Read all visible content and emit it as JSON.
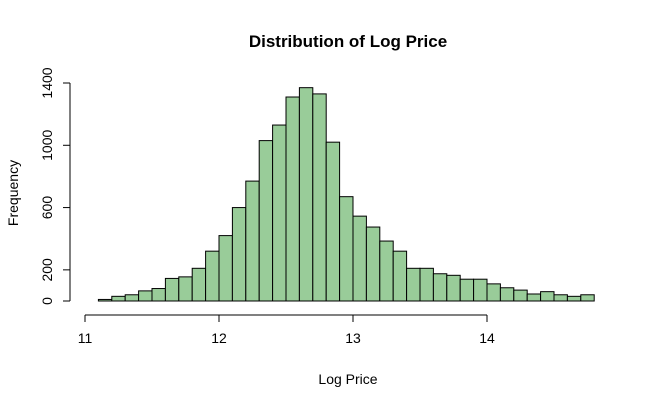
{
  "chart_data": {
    "type": "bar",
    "title": "Distribution of Log Price",
    "xlabel": "Log Price",
    "ylabel": "Frequency",
    "bin_width": 0.1,
    "bins_start": [
      11.1,
      11.2,
      11.3,
      11.4,
      11.5,
      11.6,
      11.7,
      11.8,
      11.9,
      12.0,
      12.1,
      12.2,
      12.3,
      12.4,
      12.5,
      12.6,
      12.7,
      12.8,
      12.9,
      13.0,
      13.1,
      13.2,
      13.3,
      13.4,
      13.5,
      13.6,
      13.7,
      13.8,
      13.9,
      14.0,
      14.1,
      14.2,
      14.3,
      14.4,
      14.5,
      14.6,
      14.7
    ],
    "values": [
      10,
      30,
      40,
      65,
      80,
      145,
      155,
      210,
      320,
      420,
      600,
      770,
      1030,
      1130,
      1310,
      1370,
      1330,
      1020,
      670,
      545,
      475,
      385,
      320,
      210,
      210,
      175,
      165,
      140,
      140,
      110,
      85,
      70,
      45,
      60,
      40,
      30,
      40
    ],
    "x_ticks": [
      "11",
      "12",
      "13",
      "14"
    ],
    "y_ticks": [
      "0",
      "200",
      "600",
      "1000",
      "1400"
    ],
    "xlim": [
      11,
      14.8
    ],
    "ylim": [
      0,
      1400
    ],
    "grid": false,
    "bar_color": "#99cc99",
    "edge_color": "#000000"
  }
}
